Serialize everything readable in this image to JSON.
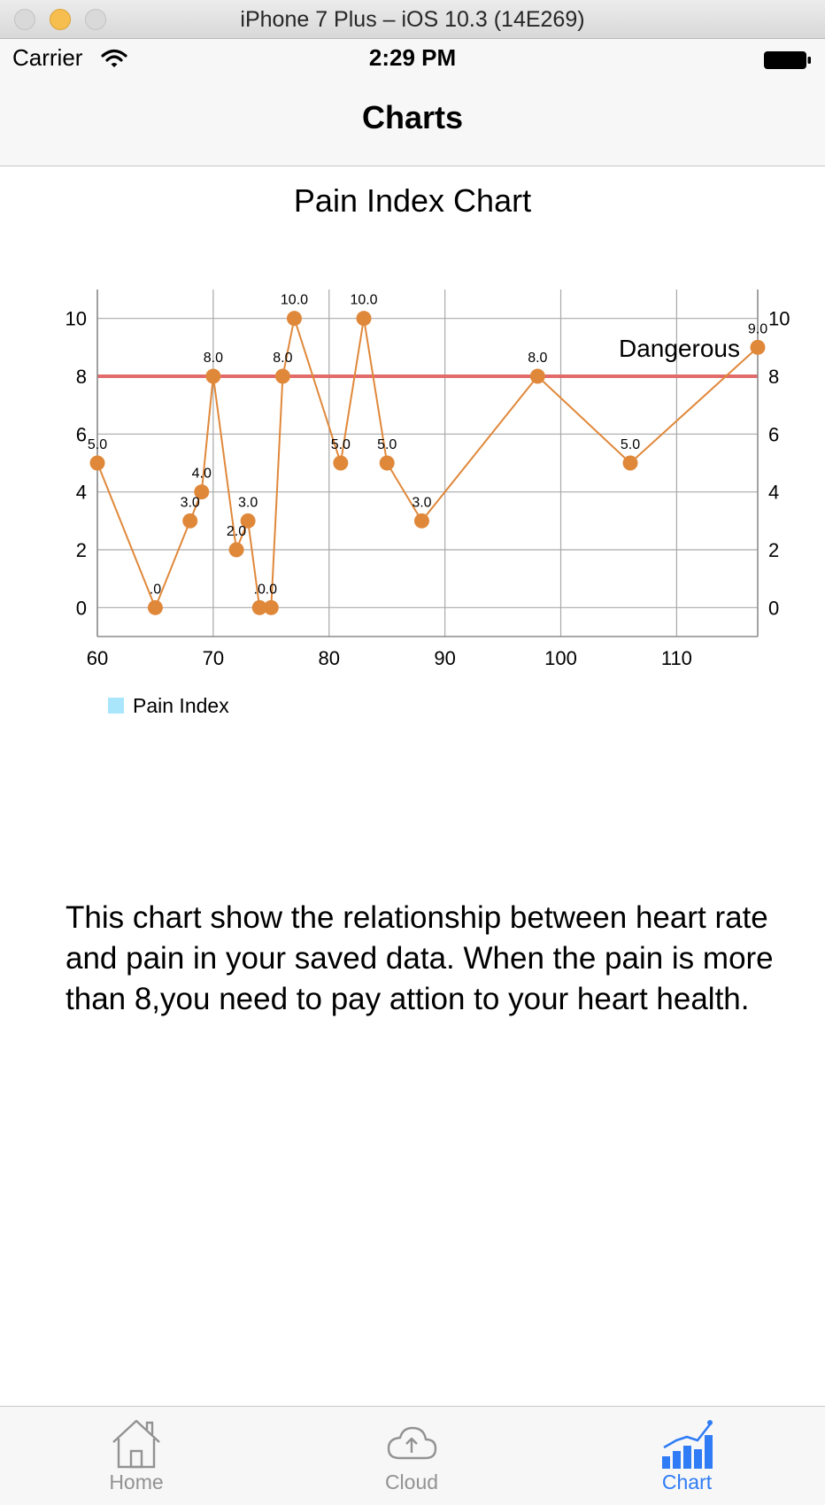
{
  "simulator": {
    "title": "iPhone 7 Plus – iOS 10.3 (14E269)"
  },
  "status_bar": {
    "carrier": "Carrier",
    "time": "2:29 PM"
  },
  "nav": {
    "title": "Charts"
  },
  "chart_data": {
    "type": "line",
    "title": "Pain Index Chart",
    "xlabel": "",
    "ylabel": "",
    "xlim": [
      60,
      117
    ],
    "ylim": [
      -1,
      11
    ],
    "x_ticks": [
      60,
      70,
      80,
      90,
      100,
      110
    ],
    "y_ticks": [
      0,
      2,
      4,
      6,
      8,
      10
    ],
    "grid": true,
    "legend_position": "bottom-left",
    "series": [
      {
        "name": "Pain Index",
        "color": "#e0883a",
        "legend_color": "#a9e6fb",
        "points": [
          {
            "x": 60,
            "y": 5,
            "label": "5.0"
          },
          {
            "x": 65,
            "y": 0,
            "label": ".0"
          },
          {
            "x": 68,
            "y": 3,
            "label": "3.0"
          },
          {
            "x": 69,
            "y": 4,
            "label": "4.0"
          },
          {
            "x": 70,
            "y": 8,
            "label": "8.0"
          },
          {
            "x": 72,
            "y": 2,
            "label": "2.0"
          },
          {
            "x": 73,
            "y": 3,
            "label": "3.0"
          },
          {
            "x": 74,
            "y": 0,
            "label": ".0"
          },
          {
            "x": 75,
            "y": 0,
            "label": ".0"
          },
          {
            "x": 76,
            "y": 8,
            "label": "8.0"
          },
          {
            "x": 77,
            "y": 10,
            "label": "10.0"
          },
          {
            "x": 81,
            "y": 5,
            "label": "5.0"
          },
          {
            "x": 83,
            "y": 10,
            "label": "10.0"
          },
          {
            "x": 85,
            "y": 5,
            "label": "5.0"
          },
          {
            "x": 88,
            "y": 3,
            "label": "3.0"
          },
          {
            "x": 98,
            "y": 8,
            "label": "8.0"
          },
          {
            "x": 106,
            "y": 5,
            "label": "5.0"
          },
          {
            "x": 117,
            "y": 9,
            "label": "9.0"
          }
        ]
      }
    ],
    "limit_line": {
      "y": 8,
      "label": "Dangerous",
      "color": "#e36a6a"
    }
  },
  "legend": {
    "label": "Pain Index"
  },
  "description": "This chart show the relationship between heart rate and pain in your saved data. When the pain is more than 8,you need to pay attion to your heart health.",
  "tabs": [
    {
      "label": "Home",
      "icon": "house-icon"
    },
    {
      "label": "Cloud",
      "icon": "cloud-upload-icon"
    },
    {
      "label": "Chart",
      "icon": "bar-chart-icon",
      "selected": true
    }
  ],
  "colors": {
    "accent": "#2f7cf6",
    "tab_inactive": "#929292",
    "series": "#e0883a",
    "limit": "#e36a6a"
  }
}
